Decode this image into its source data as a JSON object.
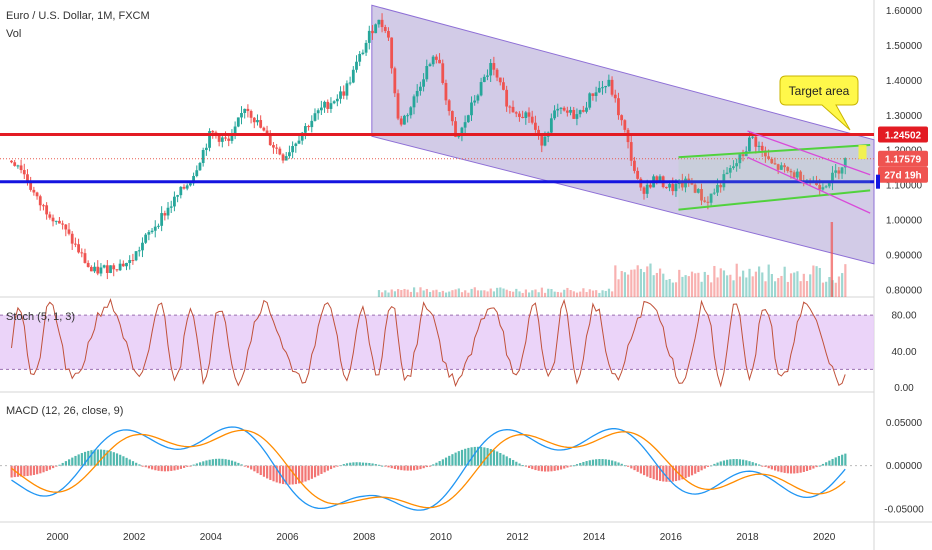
{
  "header": {
    "symbol": "Euro / U.S. Dollar, 1M, FXCM",
    "volume_label": "Vol"
  },
  "colors": {
    "up": "#26a69a",
    "down": "#ef5350",
    "red_line": "#e31b23",
    "blue_line": "#1414e0",
    "channel_fill": "#9b8cc9",
    "green_line": "#4cd137",
    "callout_fill": "#fff84a",
    "stoch_band": "#e6c9f7",
    "stoch_line": "#c0513a",
    "macd_line": "#2196f3",
    "signal_line": "#ff8c00"
  },
  "annotation": {
    "target_text": "Target area"
  },
  "chart_data": [
    {
      "type": "line",
      "title": "Euro / U.S. Dollar, 1M, FXCM",
      "ylim": [
        0.78,
        1.63
      ],
      "y_ticks": [
        "1.60000",
        "1.50000",
        "1.40000",
        "1.30000",
        "1.20000",
        "1.10000",
        "1.00000",
        "0.90000",
        "0.80000"
      ],
      "x_ticks": [
        "2000",
        "2002",
        "2004",
        "2006",
        "2008",
        "2010",
        "2012",
        "2014",
        "2016",
        "2018",
        "2020"
      ],
      "xlim": [
        1998.5,
        2021.3
      ],
      "series": [
        {
          "x": [
            1998.8,
            1999.0,
            1999.5,
            2000.0,
            2000.5,
            2000.9,
            2001.5,
            2001.9,
            2002.5,
            2003.0,
            2003.5,
            2004.0,
            2004.5,
            2004.9,
            2005.5,
            2005.9,
            2006.5,
            2006.9,
            2007.5,
            2007.9,
            2008.3,
            2008.6,
            2008.9,
            2009.2,
            2009.6,
            2009.9,
            2010.4,
            2010.9,
            2011.3,
            2011.8,
            2012.3,
            2012.6,
            2013.0,
            2013.6,
            2014.0,
            2014.4,
            2014.8,
            2015.2,
            2015.6,
            2016.0,
            2016.5,
            2016.9,
            2017.4,
            2017.9,
            2018.1,
            2018.6,
            2019.0,
            2019.5,
            2019.9,
            2020.2,
            2020.6
          ],
          "values": [
            1.17,
            1.16,
            1.05,
            1.0,
            0.92,
            0.85,
            0.87,
            0.88,
            0.98,
            1.05,
            1.12,
            1.25,
            1.22,
            1.33,
            1.23,
            1.18,
            1.27,
            1.32,
            1.37,
            1.47,
            1.57,
            1.55,
            1.27,
            1.32,
            1.43,
            1.47,
            1.22,
            1.35,
            1.44,
            1.32,
            1.3,
            1.22,
            1.31,
            1.3,
            1.37,
            1.39,
            1.25,
            1.08,
            1.12,
            1.09,
            1.11,
            1.05,
            1.12,
            1.19,
            1.24,
            1.16,
            1.14,
            1.12,
            1.1,
            1.12,
            1.18
          ]
        }
      ],
      "price_labels": {
        "resistance": "1.24502",
        "last": "1.17579",
        "countdown": "27d 19h"
      },
      "levels": {
        "red": 1.245,
        "blue": 1.11,
        "last": 1.1758
      }
    },
    {
      "type": "line",
      "title": "Stoch (5, 1, 3)",
      "ylim": [
        -5,
        100
      ],
      "y_ticks": [
        "80.00",
        "40.00",
        "0.00"
      ],
      "levels": [
        20,
        80
      ]
    },
    {
      "type": "line",
      "title": "MACD (12, 26, close, 9)",
      "ylim": [
        -0.065,
        0.085
      ],
      "y_ticks": [
        "0.05000",
        "0.00000",
        "-0.05000"
      ]
    }
  ]
}
